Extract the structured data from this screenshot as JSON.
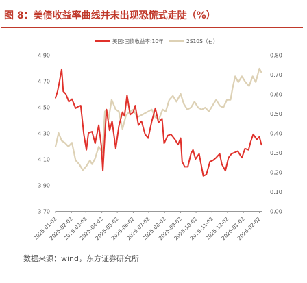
{
  "figure": {
    "title": "图 8：美债收益率曲线并未出现恐慌式走陡（%）",
    "source": "数据来源：wind，东方证券研究所"
  },
  "chart_data": {
    "type": "line",
    "legend_position": "top-center",
    "grid": false,
    "left_axis": {
      "ylim": [
        3.7,
        4.9
      ],
      "ticks": [
        "3.70",
        "3.90",
        "4.10",
        "4.30",
        "4.50",
        "4.70",
        "4.90"
      ]
    },
    "right_axis": {
      "ylim": [
        0.0,
        0.8
      ],
      "ticks": [
        "0.00",
        "0.10",
        "0.20",
        "0.30",
        "0.40",
        "0.50",
        "0.60",
        "0.70",
        "0.80"
      ]
    },
    "x_tick_labels": [
      "2025-01-02",
      "2025-02-02",
      "2025-03-02",
      "2025-04-02",
      "2025-05-02",
      "2025-06-02",
      "2025-07-02",
      "2025-08-02",
      "2025-09-02",
      "2025-10-02",
      "2025-11-02",
      "2025-12-02",
      "2026-01-02",
      "2026-02-02"
    ],
    "series": [
      {
        "name": "美国:国债收益率:10年",
        "axis": "left",
        "color": "#e0312b",
        "points": [
          [
            "2025-01-02",
            4.57
          ],
          [
            "2025-01-06",
            4.62
          ],
          [
            "2025-01-10",
            4.7
          ],
          [
            "2025-01-14",
            4.79
          ],
          [
            "2025-01-17",
            4.62
          ],
          [
            "2025-01-22",
            4.6
          ],
          [
            "2025-01-28",
            4.54
          ],
          [
            "2025-02-03",
            4.56
          ],
          [
            "2025-02-10",
            4.49
          ],
          [
            "2025-02-14",
            4.5
          ],
          [
            "2025-02-20",
            4.51
          ],
          [
            "2025-02-26",
            4.29
          ],
          [
            "2025-03-03",
            4.17
          ],
          [
            "2025-03-07",
            4.3
          ],
          [
            "2025-03-14",
            4.31
          ],
          [
            "2025-03-20",
            4.22
          ],
          [
            "2025-03-27",
            4.36
          ],
          [
            "2025-04-01",
            4.2
          ],
          [
            "2025-04-04",
            4.01
          ],
          [
            "2025-04-08",
            4.29
          ],
          [
            "2025-04-11",
            4.48
          ],
          [
            "2025-04-17",
            4.32
          ],
          [
            "2025-04-22",
            4.39
          ],
          [
            "2025-04-29",
            4.18
          ],
          [
            "2025-05-05",
            4.35
          ],
          [
            "2025-05-12",
            4.46
          ],
          [
            "2025-05-16",
            4.43
          ],
          [
            "2025-05-21",
            4.59
          ],
          [
            "2025-05-27",
            4.44
          ],
          [
            "2025-06-02",
            4.46
          ],
          [
            "2025-06-06",
            4.51
          ],
          [
            "2025-06-12",
            4.36
          ],
          [
            "2025-06-18",
            4.39
          ],
          [
            "2025-06-25",
            4.29
          ],
          [
            "2025-07-01",
            4.26
          ],
          [
            "2025-07-08",
            4.39
          ],
          [
            "2025-07-15",
            4.49
          ],
          [
            "2025-07-21",
            4.38
          ],
          [
            "2025-07-28",
            4.41
          ],
          [
            "2025-08-01",
            4.22
          ],
          [
            "2025-08-08",
            4.28
          ],
          [
            "2025-08-14",
            4.29
          ],
          [
            "2025-08-22",
            4.25
          ],
          [
            "2025-08-28",
            4.21
          ],
          [
            "2025-09-02",
            4.26
          ],
          [
            "2025-09-05",
            4.08
          ],
          [
            "2025-09-10",
            4.04
          ],
          [
            "2025-09-16",
            4.04
          ],
          [
            "2025-09-22",
            4.14
          ],
          [
            "2025-09-26",
            4.17
          ],
          [
            "2025-10-01",
            4.1
          ],
          [
            "2025-10-08",
            4.14
          ],
          [
            "2025-10-16",
            3.97
          ],
          [
            "2025-10-22",
            3.98
          ],
          [
            "2025-10-29",
            4.08
          ],
          [
            "2025-11-04",
            4.09
          ],
          [
            "2025-11-10",
            4.11
          ],
          [
            "2025-11-17",
            4.14
          ],
          [
            "2025-11-21",
            4.06
          ],
          [
            "2025-11-28",
            4.01
          ],
          [
            "2025-12-04",
            4.11
          ],
          [
            "2025-12-10",
            4.14
          ],
          [
            "2025-12-16",
            4.15
          ],
          [
            "2025-12-22",
            4.16
          ],
          [
            "2025-12-30",
            4.11
          ],
          [
            "2026-01-05",
            4.18
          ],
          [
            "2026-01-12",
            4.17
          ],
          [
            "2026-01-16",
            4.23
          ],
          [
            "2026-01-21",
            4.29
          ],
          [
            "2026-01-28",
            4.25
          ],
          [
            "2026-02-02",
            4.27
          ],
          [
            "2026-02-06",
            4.21
          ]
        ]
      },
      {
        "name": "2S10S（右）",
        "axis": "right",
        "color": "#ddd1b5",
        "points": [
          [
            "2025-01-02",
            0.33
          ],
          [
            "2025-01-08",
            0.4
          ],
          [
            "2025-01-14",
            0.36
          ],
          [
            "2025-01-20",
            0.35
          ],
          [
            "2025-01-27",
            0.33
          ],
          [
            "2025-02-03",
            0.35
          ],
          [
            "2025-02-10",
            0.26
          ],
          [
            "2025-02-17",
            0.24
          ],
          [
            "2025-02-24",
            0.21
          ],
          [
            "2025-03-03",
            0.23
          ],
          [
            "2025-03-10",
            0.26
          ],
          [
            "2025-03-14",
            0.24
          ],
          [
            "2025-03-20",
            0.27
          ],
          [
            "2025-03-27",
            0.33
          ],
          [
            "2025-04-03",
            0.3
          ],
          [
            "2025-04-08",
            0.51
          ],
          [
            "2025-04-11",
            0.52
          ],
          [
            "2025-04-15",
            0.47
          ],
          [
            "2025-04-21",
            0.57
          ],
          [
            "2025-04-29",
            0.52
          ],
          [
            "2025-05-05",
            0.51
          ],
          [
            "2025-05-12",
            0.42
          ],
          [
            "2025-05-19",
            0.49
          ],
          [
            "2025-05-26",
            0.51
          ],
          [
            "2025-06-02",
            0.52
          ],
          [
            "2025-06-10",
            0.48
          ],
          [
            "2025-06-17",
            0.49
          ],
          [
            "2025-06-24",
            0.5
          ],
          [
            "2025-07-01",
            0.51
          ],
          [
            "2025-07-08",
            0.52
          ],
          [
            "2025-07-15",
            0.48
          ],
          [
            "2025-07-22",
            0.47
          ],
          [
            "2025-07-29",
            0.52
          ],
          [
            "2025-08-04",
            0.51
          ],
          [
            "2025-08-11",
            0.57
          ],
          [
            "2025-08-18",
            0.59
          ],
          [
            "2025-08-25",
            0.56
          ],
          [
            "2025-09-02",
            0.6
          ],
          [
            "2025-09-08",
            0.55
          ],
          [
            "2025-09-15",
            0.52
          ],
          [
            "2025-09-22",
            0.53
          ],
          [
            "2025-09-29",
            0.56
          ],
          [
            "2025-10-06",
            0.53
          ],
          [
            "2025-10-13",
            0.52
          ],
          [
            "2025-10-20",
            0.53
          ],
          [
            "2025-10-27",
            0.51
          ],
          [
            "2025-11-03",
            0.54
          ],
          [
            "2025-11-10",
            0.57
          ],
          [
            "2025-11-17",
            0.54
          ],
          [
            "2025-11-24",
            0.53
          ],
          [
            "2025-12-01",
            0.57
          ],
          [
            "2025-12-08",
            0.57
          ],
          [
            "2025-12-12",
            0.63
          ],
          [
            "2025-12-17",
            0.69
          ],
          [
            "2025-12-23",
            0.66
          ],
          [
            "2025-12-30",
            0.69
          ],
          [
            "2026-01-06",
            0.66
          ],
          [
            "2026-01-13",
            0.64
          ],
          [
            "2026-01-20",
            0.69
          ],
          [
            "2026-01-26",
            0.66
          ],
          [
            "2026-02-02",
            0.73
          ],
          [
            "2026-02-06",
            0.71
          ]
        ]
      }
    ]
  }
}
